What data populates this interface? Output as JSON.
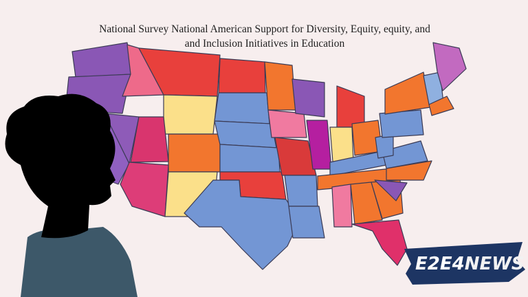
{
  "title": {
    "line1": "National Survey National American Support for Diversity,  Equity, equity, and",
    "line2": "and Inclusion Initiatives in Education"
  },
  "logo": {
    "part1": "E2E4",
    "part2": "NEWS"
  }
}
